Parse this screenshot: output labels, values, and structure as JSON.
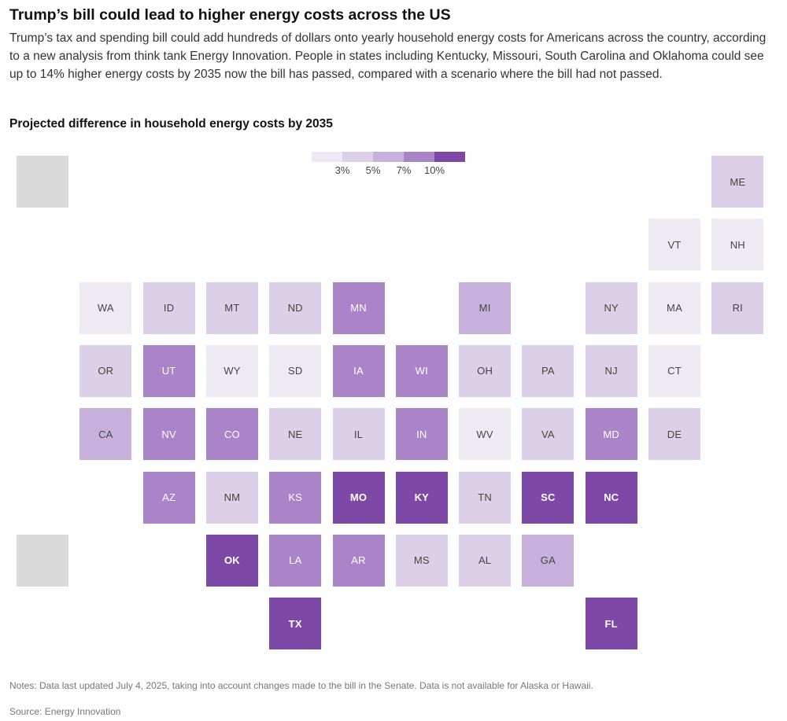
{
  "header": {
    "title": "Trump’s bill could lead to higher energy costs across the US",
    "subtitle": "Trump’s tax and spending bill could add hundreds of dollars onto yearly household energy costs for Americans across the country, according to a new analysis from think tank Energy Innovation. People in states including Kentucky, Missouri, South Carolina and Oklahoma could see up to 14% higher energy costs by 2035 now the bill has passed, compared with a scenario where the bill had not passed.",
    "chart_label": "Projected difference in household energy costs by 2035"
  },
  "legend": {
    "ticks": [
      "3%",
      "5%",
      "7%",
      "10%"
    ],
    "colors": [
      "#efe9f4",
      "#dccfe8",
      "#c7b0dc",
      "#aa84c8",
      "#7e48a6"
    ]
  },
  "colors": {
    "na": "#d9d9d9",
    "label_dark": "#444444",
    "label_light": "#ffffff",
    "labels_light_from_bin": 3
  },
  "chart_data": {
    "type": "tile-map",
    "measure": "Projected difference in household energy costs by 2035",
    "bins": [
      "< 3%",
      "3–5%",
      "5–7%",
      "7–10%",
      "≥ 10%"
    ],
    "states": [
      {
        "abbr": "ME",
        "bin": 1,
        "row": 0,
        "col": 11
      },
      {
        "abbr": "VT",
        "bin": 0,
        "row": 1,
        "col": 10
      },
      {
        "abbr": "NH",
        "bin": 0,
        "row": 1,
        "col": 11
      },
      {
        "abbr": "WA",
        "bin": 0,
        "row": 2,
        "col": 1
      },
      {
        "abbr": "ID",
        "bin": 1,
        "row": 2,
        "col": 2
      },
      {
        "abbr": "MT",
        "bin": 1,
        "row": 2,
        "col": 3
      },
      {
        "abbr": "ND",
        "bin": 1,
        "row": 2,
        "col": 4
      },
      {
        "abbr": "MN",
        "bin": 3,
        "row": 2,
        "col": 5
      },
      {
        "abbr": "MI",
        "bin": 2,
        "row": 2,
        "col": 7
      },
      {
        "abbr": "NY",
        "bin": 1,
        "row": 2,
        "col": 9
      },
      {
        "abbr": "MA",
        "bin": 0,
        "row": 2,
        "col": 10
      },
      {
        "abbr": "RI",
        "bin": 1,
        "row": 2,
        "col": 11
      },
      {
        "abbr": "OR",
        "bin": 1,
        "row": 3,
        "col": 1
      },
      {
        "abbr": "UT",
        "bin": 3,
        "row": 3,
        "col": 2
      },
      {
        "abbr": "WY",
        "bin": 0,
        "row": 3,
        "col": 3
      },
      {
        "abbr": "SD",
        "bin": 0,
        "row": 3,
        "col": 4
      },
      {
        "abbr": "IA",
        "bin": 3,
        "row": 3,
        "col": 5
      },
      {
        "abbr": "WI",
        "bin": 3,
        "row": 3,
        "col": 6
      },
      {
        "abbr": "OH",
        "bin": 1,
        "row": 3,
        "col": 7
      },
      {
        "abbr": "PA",
        "bin": 1,
        "row": 3,
        "col": 8
      },
      {
        "abbr": "NJ",
        "bin": 1,
        "row": 3,
        "col": 9
      },
      {
        "abbr": "CT",
        "bin": 0,
        "row": 3,
        "col": 10
      },
      {
        "abbr": "CA",
        "bin": 2,
        "row": 4,
        "col": 1
      },
      {
        "abbr": "NV",
        "bin": 3,
        "row": 4,
        "col": 2
      },
      {
        "abbr": "CO",
        "bin": 3,
        "row": 4,
        "col": 3
      },
      {
        "abbr": "NE",
        "bin": 1,
        "row": 4,
        "col": 4
      },
      {
        "abbr": "IL",
        "bin": 1,
        "row": 4,
        "col": 5
      },
      {
        "abbr": "IN",
        "bin": 3,
        "row": 4,
        "col": 6
      },
      {
        "abbr": "WV",
        "bin": 0,
        "row": 4,
        "col": 7
      },
      {
        "abbr": "VA",
        "bin": 1,
        "row": 4,
        "col": 8
      },
      {
        "abbr": "MD",
        "bin": 3,
        "row": 4,
        "col": 9
      },
      {
        "abbr": "DE",
        "bin": 1,
        "row": 4,
        "col": 10
      },
      {
        "abbr": "AZ",
        "bin": 3,
        "row": 5,
        "col": 2
      },
      {
        "abbr": "NM",
        "bin": 1,
        "row": 5,
        "col": 3
      },
      {
        "abbr": "KS",
        "bin": 3,
        "row": 5,
        "col": 4
      },
      {
        "abbr": "MO",
        "bin": 4,
        "row": 5,
        "col": 5
      },
      {
        "abbr": "KY",
        "bin": 4,
        "row": 5,
        "col": 6
      },
      {
        "abbr": "TN",
        "bin": 1,
        "row": 5,
        "col": 7
      },
      {
        "abbr": "SC",
        "bin": 4,
        "row": 5,
        "col": 8
      },
      {
        "abbr": "NC",
        "bin": 4,
        "row": 5,
        "col": 9
      },
      {
        "abbr": "OK",
        "bin": 4,
        "row": 6,
        "col": 3
      },
      {
        "abbr": "LA",
        "bin": 3,
        "row": 6,
        "col": 4
      },
      {
        "abbr": "AR",
        "bin": 3,
        "row": 6,
        "col": 5
      },
      {
        "abbr": "MS",
        "bin": 1,
        "row": 6,
        "col": 6
      },
      {
        "abbr": "AL",
        "bin": 1,
        "row": 6,
        "col": 7
      },
      {
        "abbr": "GA",
        "bin": 2,
        "row": 6,
        "col": 8
      },
      {
        "abbr": "TX",
        "bin": 4,
        "row": 7,
        "col": 4
      },
      {
        "abbr": "FL",
        "bin": 4,
        "row": 7,
        "col": 9
      }
    ],
    "unavailable": [
      {
        "row": 0,
        "col": 0
      },
      {
        "row": 6,
        "col": 0
      }
    ]
  },
  "footer": {
    "notes": "Notes: Data last updated July 4, 2025, taking into account changes made to the bill in the Senate. Data is not available for Alaska or Hawaii.",
    "source": "Source: Energy Innovation"
  }
}
